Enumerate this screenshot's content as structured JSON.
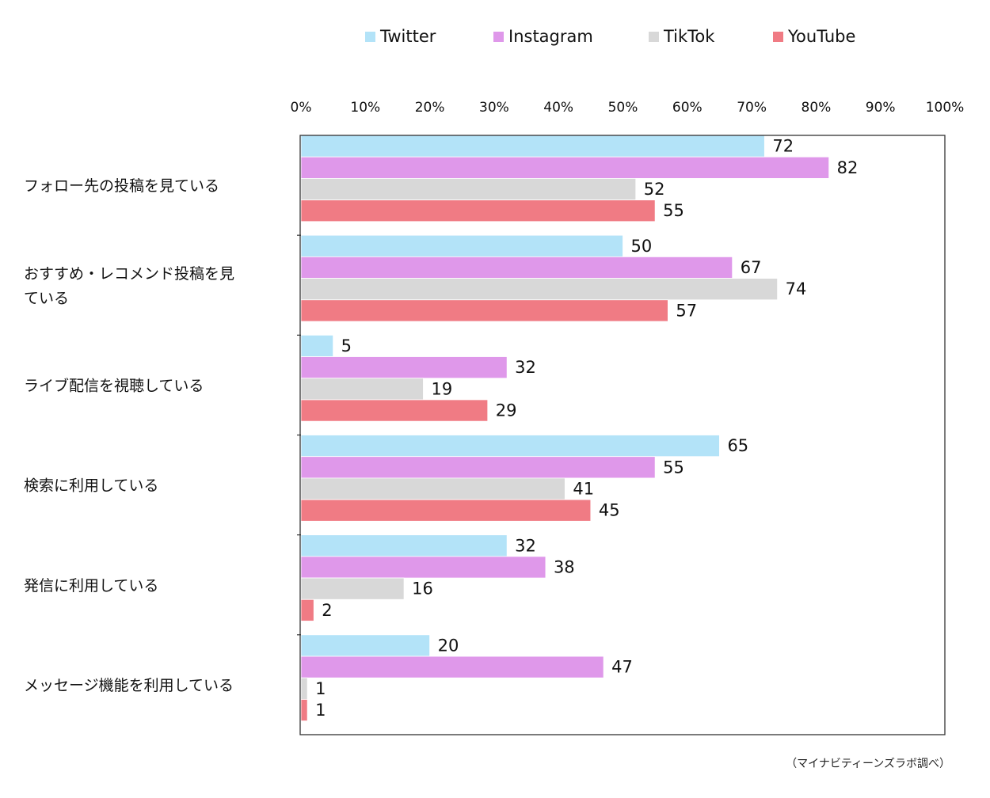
{
  "legend": {
    "items": [
      {
        "label": "Twitter",
        "color": "#b3e3f8"
      },
      {
        "label": "Instagram",
        "color": "#df98ea"
      },
      {
        "label": "TikTok",
        "color": "#d8d8d8"
      },
      {
        "label": "YouTube",
        "color": "#f07b84"
      }
    ]
  },
  "source_note": "（マイナビティーンズラボ調べ）",
  "chart_data": {
    "type": "bar",
    "orientation": "horizontal",
    "categories": [
      [
        "フォロー先の投稿を見ている"
      ],
      [
        "おすすめ・レコメンド投稿を見",
        "ている"
      ],
      [
        "ライブ配信を視聴している"
      ],
      [
        "検索に利用している"
      ],
      [
        "発信に利用している"
      ],
      [
        "メッセージ機能を利用している"
      ]
    ],
    "series": [
      {
        "name": "Twitter",
        "values": [
          72,
          50,
          5,
          65,
          32,
          20
        ]
      },
      {
        "name": "Instagram",
        "values": [
          82,
          67,
          32,
          55,
          38,
          47
        ]
      },
      {
        "name": "TikTok",
        "values": [
          52,
          74,
          19,
          41,
          16,
          1
        ]
      },
      {
        "name": "YouTube",
        "values": [
          55,
          57,
          29,
          45,
          2,
          1
        ]
      }
    ],
    "xlim": [
      0,
      100
    ],
    "xticks": [
      "0%",
      "10%",
      "20%",
      "30%",
      "40%",
      "50%",
      "60%",
      "70%",
      "80%",
      "90%",
      "100%"
    ],
    "grid": false,
    "legend_position": "top"
  }
}
